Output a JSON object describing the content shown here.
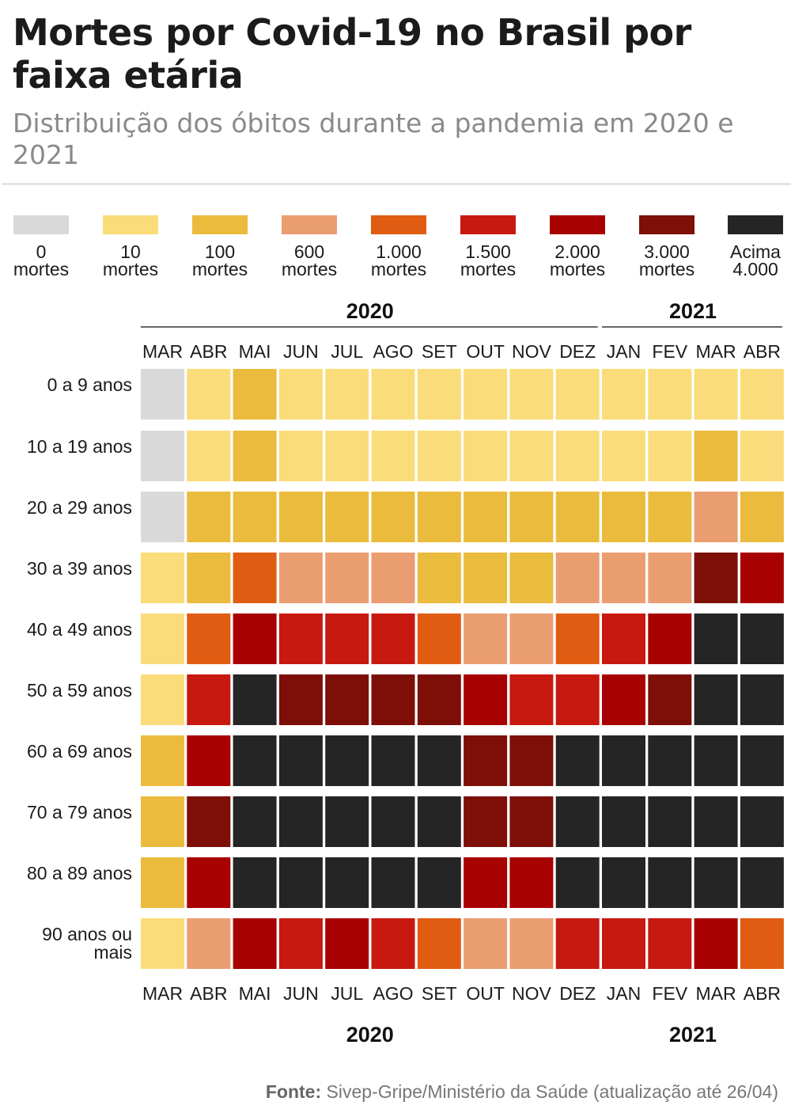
{
  "header": {
    "title": "Mortes por Covid-19 no Brasil por faixa etária",
    "subtitle": "Distribuição dos óbitos durante a pandemia em 2020 e 2021"
  },
  "legend": [
    {
      "line1": "0",
      "line2": "mortes",
      "color": "#d9d9d9"
    },
    {
      "line1": "10",
      "line2": "mortes",
      "color": "#fadd7a"
    },
    {
      "line1": "100",
      "line2": "mortes",
      "color": "#ebbb3e"
    },
    {
      "line1": "600",
      "line2": "mortes",
      "color": "#eb9d72"
    },
    {
      "line1": "1.000",
      "line2": "mortes",
      "color": "#e05c12"
    },
    {
      "line1": "1.500",
      "line2": "mortes",
      "color": "#c7190f"
    },
    {
      "line1": "2.000",
      "line2": "mortes",
      "color": "#a80101"
    },
    {
      "line1": "3.000",
      "line2": "mortes",
      "color": "#7d0e08"
    },
    {
      "line1": "Acima",
      "line2": "4.000",
      "color": "#252525"
    }
  ],
  "chart_data": {
    "type": "heatmap",
    "title": "Mortes por Covid-19 no Brasil por faixa etária",
    "subtitle": "Distribuição dos óbitos durante a pandemia em 2020 e 2021",
    "years": [
      {
        "label": "2020",
        "months": 10
      },
      {
        "label": "2021",
        "months": 4
      }
    ],
    "columns": [
      "MAR",
      "ABR",
      "MAI",
      "JUN",
      "JUL",
      "AGO",
      "SET",
      "OUT",
      "NOV",
      "DEZ",
      "JAN",
      "FEV",
      "MAR",
      "ABR"
    ],
    "rows": [
      "0 a 9 anos",
      "10 a 19 anos",
      "20 a 29 anos",
      "30 a 39 anos",
      "40 a 49 anos",
      "50 a 59 anos",
      "60 a 69 anos",
      "70 a 79 anos",
      "80 a 89 anos",
      "90 anos ou mais"
    ],
    "color_scale": [
      "0 mortes",
      "10 mortes",
      "100 mortes",
      "600 mortes",
      "1.000 mortes",
      "1.500 mortes",
      "2.000 mortes",
      "3.000 mortes",
      "Acima 4.000"
    ],
    "values": [
      [
        0,
        1,
        2,
        1,
        1,
        1,
        1,
        1,
        1,
        1,
        1,
        1,
        1,
        1
      ],
      [
        0,
        1,
        2,
        1,
        1,
        1,
        1,
        1,
        1,
        1,
        1,
        1,
        2,
        1
      ],
      [
        0,
        2,
        2,
        2,
        2,
        2,
        2,
        2,
        2,
        2,
        2,
        2,
        3,
        2
      ],
      [
        1,
        2,
        4,
        3,
        3,
        3,
        2,
        2,
        2,
        3,
        3,
        3,
        7,
        6
      ],
      [
        1,
        4,
        6,
        5,
        5,
        5,
        4,
        3,
        3,
        4,
        5,
        6,
        8,
        8
      ],
      [
        1,
        5,
        8,
        7,
        7,
        7,
        7,
        6,
        5,
        5,
        6,
        7,
        8,
        8
      ],
      [
        2,
        6,
        8,
        8,
        8,
        8,
        8,
        7,
        7,
        8,
        8,
        8,
        8,
        8
      ],
      [
        2,
        7,
        8,
        8,
        8,
        8,
        8,
        7,
        7,
        8,
        8,
        8,
        8,
        8
      ],
      [
        2,
        6,
        8,
        8,
        8,
        8,
        8,
        6,
        6,
        8,
        8,
        8,
        8,
        8
      ],
      [
        1,
        3,
        6,
        5,
        6,
        5,
        4,
        3,
        3,
        5,
        5,
        5,
        6,
        4
      ]
    ]
  },
  "source": {
    "label": "Fonte:",
    "text": "Sivep-Gripe/Ministério da Saúde (atualização até 26/04)"
  }
}
